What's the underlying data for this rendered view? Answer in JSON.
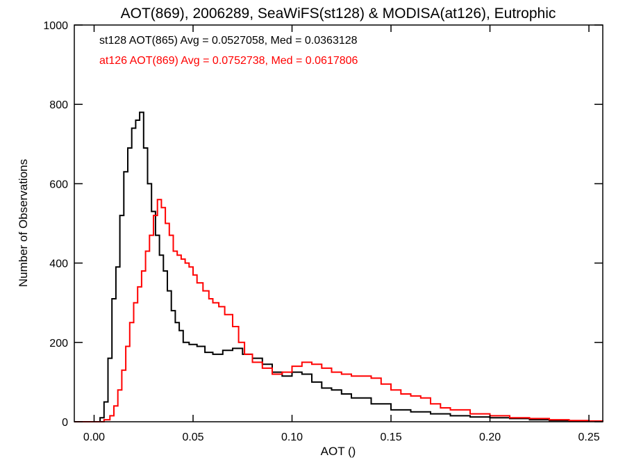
{
  "chart_data": {
    "type": "line",
    "title": "AOT(869), 2006289, SeaWiFS(st128) & MODISA(at126), Eutrophic",
    "xlabel": "AOT ()",
    "ylabel": "Number of Observations",
    "xlim": [
      -0.01,
      0.257
    ],
    "ylim": [
      0,
      1000
    ],
    "xticks": [
      0.0,
      0.05,
      0.1,
      0.15,
      0.2,
      0.25
    ],
    "xtick_labels": [
      "0.00",
      "0.05",
      "0.10",
      "0.15",
      "0.20",
      "0.25"
    ],
    "yticks": [
      0,
      200,
      400,
      600,
      800,
      1000
    ],
    "ytick_labels": [
      "0",
      "200",
      "400",
      "600",
      "800",
      "1000"
    ],
    "grid": false,
    "step": true,
    "annotations": [
      {
        "text": "st128 AOT(865) Avg = 0.0527058, Med = 0.0363128",
        "color": "#000000"
      },
      {
        "text": "at126 AOT(869) Avg = 0.0752738, Med = 0.0617806",
        "color": "#ff0000"
      }
    ],
    "series": [
      {
        "color": "#000000",
        "x": [
          -0.01,
          0.0,
          0.003,
          0.005,
          0.007,
          0.009,
          0.011,
          0.013,
          0.015,
          0.017,
          0.019,
          0.021,
          0.023,
          0.025,
          0.027,
          0.029,
          0.031,
          0.033,
          0.035,
          0.037,
          0.039,
          0.041,
          0.043,
          0.045,
          0.048,
          0.052,
          0.056,
          0.06,
          0.065,
          0.07,
          0.075,
          0.08,
          0.085,
          0.09,
          0.095,
          0.1,
          0.105,
          0.11,
          0.115,
          0.12,
          0.125,
          0.13,
          0.14,
          0.15,
          0.16,
          0.17,
          0.18,
          0.19,
          0.2,
          0.21,
          0.22,
          0.23,
          0.24,
          0.25,
          0.257
        ],
        "y": [
          0,
          0,
          10,
          50,
          160,
          310,
          390,
          520,
          630,
          690,
          740,
          760,
          780,
          690,
          600,
          530,
          470,
          420,
          380,
          330,
          280,
          250,
          230,
          200,
          195,
          190,
          175,
          170,
          180,
          185,
          170,
          160,
          145,
          125,
          115,
          125,
          120,
          100,
          85,
          80,
          70,
          60,
          45,
          30,
          25,
          20,
          15,
          12,
          10,
          8,
          5,
          3,
          2,
          1,
          0
        ]
      },
      {
        "color": "#ff0000",
        "x": [
          -0.01,
          0.005,
          0.008,
          0.01,
          0.012,
          0.014,
          0.016,
          0.018,
          0.02,
          0.022,
          0.024,
          0.026,
          0.028,
          0.03,
          0.032,
          0.034,
          0.036,
          0.038,
          0.04,
          0.042,
          0.044,
          0.046,
          0.048,
          0.05,
          0.052,
          0.055,
          0.058,
          0.06,
          0.063,
          0.066,
          0.07,
          0.073,
          0.076,
          0.08,
          0.085,
          0.09,
          0.095,
          0.1,
          0.105,
          0.11,
          0.115,
          0.12,
          0.125,
          0.13,
          0.135,
          0.14,
          0.145,
          0.15,
          0.155,
          0.16,
          0.165,
          0.17,
          0.175,
          0.18,
          0.19,
          0.2,
          0.21,
          0.22,
          0.23,
          0.24,
          0.25,
          0.257
        ],
        "y": [
          0,
          5,
          15,
          40,
          80,
          130,
          190,
          250,
          300,
          340,
          380,
          430,
          470,
          520,
          560,
          540,
          500,
          470,
          430,
          420,
          410,
          400,
          390,
          370,
          350,
          330,
          310,
          300,
          290,
          270,
          240,
          200,
          170,
          150,
          135,
          120,
          125,
          140,
          150,
          145,
          135,
          125,
          120,
          115,
          115,
          110,
          95,
          80,
          70,
          65,
          60,
          45,
          35,
          30,
          20,
          15,
          10,
          8,
          5,
          3,
          2,
          0
        ]
      }
    ]
  }
}
